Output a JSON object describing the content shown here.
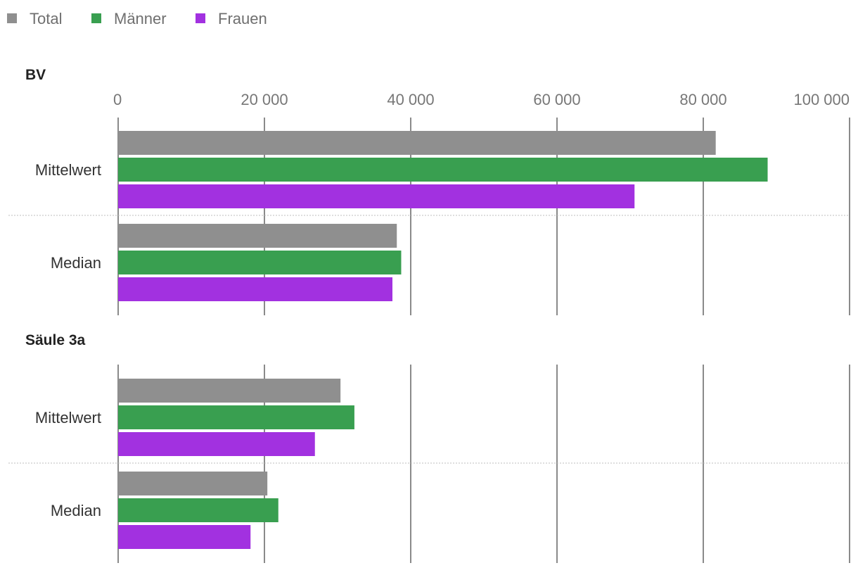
{
  "chart_data": {
    "type": "bar",
    "orientation": "horizontal",
    "legend": [
      {
        "name": "Total",
        "color": "#8f8f8f"
      },
      {
        "name": "Männer",
        "color": "#399f50"
      },
      {
        "name": "Frauen",
        "color": "#a231e0"
      }
    ],
    "xlim": [
      0,
      100000
    ],
    "ticks": [
      0,
      20000,
      40000,
      60000,
      80000,
      100000
    ],
    "tick_labels": [
      "0",
      "20 000",
      "40 000",
      "60 000",
      "80 000",
      "100 000"
    ],
    "panels": [
      {
        "title": "BV",
        "categories": [
          "Mittelwert",
          "Median"
        ],
        "series": [
          {
            "name": "Total",
            "values": [
              81700,
              38100
            ]
          },
          {
            "name": "Männer",
            "values": [
              88800,
              38700
            ]
          },
          {
            "name": "Frauen",
            "values": [
              70600,
              37500
            ]
          }
        ]
      },
      {
        "title": "Säule 3a",
        "categories": [
          "Mittelwert",
          "Median"
        ],
        "series": [
          {
            "name": "Total",
            "values": [
              30400,
              20400
            ]
          },
          {
            "name": "Männer",
            "values": [
              32300,
              21900
            ]
          },
          {
            "name": "Frauen",
            "values": [
              26900,
              18100
            ]
          }
        ]
      }
    ]
  }
}
